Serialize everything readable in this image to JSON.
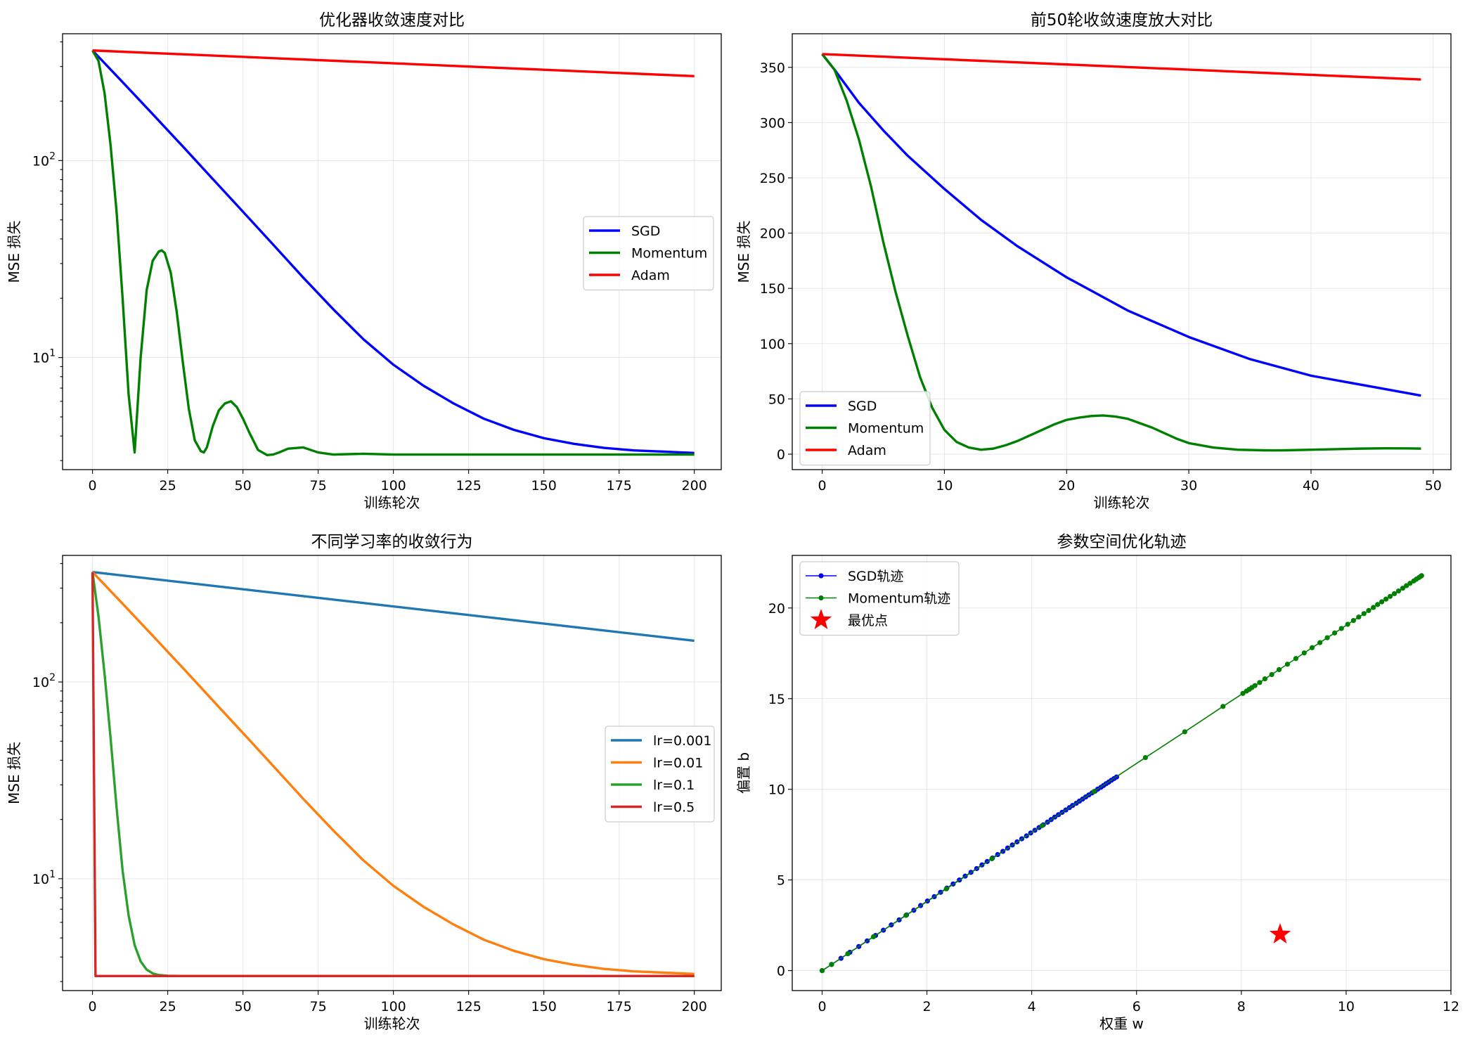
{
  "chart_data": [
    {
      "id": "p1",
      "type": "line",
      "title": "优化器收敛速度对比",
      "xlabel": "训练轮次",
      "ylabel": "MSE 损失",
      "xlim": [
        -9.95,
        208.95
      ],
      "ylim": [
        2.7,
        440
      ],
      "yscale": "log",
      "grid": true,
      "legend_position": "center-right",
      "xticks": [
        0,
        25,
        50,
        75,
        100,
        125,
        150,
        175,
        200
      ],
      "yticks_major": [
        {
          "value": 10,
          "base": "10",
          "exp": "1"
        },
        {
          "value": 100,
          "base": "10",
          "exp": "2"
        }
      ],
      "series": [
        {
          "name": "SGD",
          "color": "#0000ff",
          "x": [
            0,
            10,
            20,
            30,
            40,
            50,
            60,
            70,
            80,
            90,
            100,
            110,
            120,
            130,
            140,
            150,
            160,
            170,
            180,
            190,
            200
          ],
          "y": [
            362,
            250,
            172,
            118,
            80.5,
            55,
            37.5,
            25.5,
            17.6,
            12.4,
            9.2,
            7.2,
            5.85,
            4.9,
            4.3,
            3.9,
            3.65,
            3.48,
            3.38,
            3.33,
            3.28
          ]
        },
        {
          "name": "Momentum",
          "color": "#008000",
          "x": [
            0,
            2,
            4,
            6,
            8,
            10,
            12,
            14,
            16,
            18,
            20,
            22,
            23,
            24,
            26,
            28,
            30,
            32,
            34,
            36,
            37,
            38,
            40,
            42,
            44,
            46,
            48,
            50,
            52,
            55,
            58,
            60,
            62,
            65,
            70,
            75,
            80,
            90,
            100,
            200
          ],
          "y": [
            362,
            320,
            220,
            120,
            55,
            20,
            6.5,
            3.3,
            10,
            22,
            31,
            34.5,
            35,
            34,
            27,
            17,
            9.5,
            5.5,
            3.8,
            3.35,
            3.3,
            3.5,
            4.5,
            5.4,
            5.85,
            6.0,
            5.6,
            4.9,
            4.2,
            3.4,
            3.2,
            3.22,
            3.3,
            3.45,
            3.5,
            3.3,
            3.22,
            3.25,
            3.22,
            3.22
          ]
        },
        {
          "name": "Adam",
          "color": "#ff0000",
          "x": [
            0,
            200
          ],
          "y": [
            362,
            268
          ]
        }
      ]
    },
    {
      "id": "p2",
      "type": "line",
      "title": "前50轮收敛速度放大对比",
      "xlabel": "训练轮次",
      "ylabel": "MSE 损失",
      "xlim": [
        -2.45,
        51.45
      ],
      "ylim": [
        -14,
        380.4
      ],
      "yscale": "linear",
      "grid": true,
      "legend_position": "lower-left",
      "xticks": [
        0,
        10,
        20,
        30,
        40,
        50
      ],
      "yticks": [
        0,
        50,
        100,
        150,
        200,
        250,
        300,
        350
      ],
      "series": [
        {
          "name": "SGD",
          "color": "#0000ff",
          "x": [
            0,
            1,
            2,
            3,
            5,
            7,
            10,
            13,
            16,
            20,
            25,
            30,
            35,
            40,
            45,
            49
          ],
          "y": [
            362,
            348,
            333,
            318,
            293,
            270,
            240,
            212,
            188,
            160,
            130,
            106,
            86,
            71,
            61,
            53
          ]
        },
        {
          "name": "Momentum",
          "color": "#008000",
          "x": [
            0,
            1,
            2,
            3,
            4,
            5,
            6,
            7,
            8,
            9,
            10,
            11,
            12,
            13,
            14,
            15,
            16,
            17,
            18,
            19,
            20,
            21,
            22,
            23,
            24,
            25,
            26,
            27,
            28,
            29,
            30,
            32,
            34,
            36,
            37,
            38,
            40,
            42,
            44,
            46,
            48,
            49
          ],
          "y": [
            362,
            348,
            320,
            285,
            242,
            192,
            147,
            107,
            70,
            42,
            22,
            11,
            6,
            4,
            5,
            8,
            12,
            17,
            22,
            27,
            31,
            33,
            34.5,
            35,
            34,
            32,
            28,
            24,
            19,
            14,
            10,
            6,
            4,
            3.5,
            3.4,
            3.5,
            4,
            4.5,
            5,
            5.3,
            5.2,
            5
          ]
        },
        {
          "name": "Adam",
          "color": "#ff0000",
          "x": [
            0,
            49
          ],
          "y": [
            362,
            339
          ]
        }
      ]
    },
    {
      "id": "p3",
      "type": "line",
      "title": "不同学习率的收敛行为",
      "xlabel": "训练轮次",
      "ylabel": "MSE 损失",
      "xlim": [
        -9.95,
        208.95
      ],
      "ylim": [
        2.7,
        440
      ],
      "yscale": "log",
      "grid": true,
      "legend_position": "center-right",
      "xticks": [
        0,
        25,
        50,
        75,
        100,
        125,
        150,
        175,
        200
      ],
      "yticks_major": [
        {
          "value": 10,
          "base": "10",
          "exp": "1"
        },
        {
          "value": 100,
          "base": "10",
          "exp": "2"
        }
      ],
      "series": [
        {
          "name": "lr=0.001",
          "color": "#1f77b4",
          "x": [
            0,
            200
          ],
          "y": [
            362,
            162
          ]
        },
        {
          "name": "lr=0.01",
          "color": "#ff7f0e",
          "x": [
            0,
            10,
            20,
            30,
            40,
            50,
            60,
            70,
            80,
            90,
            100,
            110,
            120,
            130,
            140,
            150,
            160,
            170,
            180,
            190,
            200
          ],
          "y": [
            362,
            250,
            172,
            118,
            80.5,
            55,
            37.5,
            25.5,
            17.6,
            12.4,
            9.2,
            7.2,
            5.85,
            4.9,
            4.3,
            3.9,
            3.65,
            3.48,
            3.38,
            3.33,
            3.28
          ]
        },
        {
          "name": "lr=0.1",
          "color": "#2ca02c",
          "x": [
            0,
            2,
            4,
            6,
            8,
            10,
            12,
            14,
            16,
            18,
            20,
            22,
            25,
            30,
            200
          ],
          "y": [
            362,
            215,
            110,
            52,
            23,
            11,
            6.5,
            4.6,
            3.8,
            3.45,
            3.3,
            3.24,
            3.21,
            3.2,
            3.2
          ]
        },
        {
          "name": "lr=0.5",
          "color": "#d62728",
          "x": [
            0,
            1,
            2,
            200
          ],
          "y": [
            362,
            3.2,
            3.2,
            3.2
          ]
        }
      ]
    },
    {
      "id": "p4",
      "type": "line",
      "title": "参数空间优化轨迹",
      "xlabel": "权重 w",
      "ylabel": "偏置 b",
      "xlim": [
        -0.57,
        12.0
      ],
      "ylim": [
        -1.1,
        22.9
      ],
      "yscale": "linear",
      "grid": true,
      "legend_position": "upper-left",
      "xticks": [
        0,
        2,
        4,
        6,
        8,
        10,
        12
      ],
      "yticks": [
        0,
        5,
        10,
        15,
        20
      ],
      "series": [
        {
          "name": "SGD轨迹",
          "color": "#0000ff",
          "marker": "dot",
          "x": [
            0,
            0.18,
            0.36,
            0.53,
            0.7,
            0.86,
            1.02,
            1.17,
            1.32,
            1.47,
            1.61,
            1.75,
            1.88,
            2.01,
            2.14,
            2.26,
            2.38,
            2.5,
            2.62,
            2.73,
            2.84,
            2.95,
            3.05,
            3.15,
            3.25,
            3.35,
            3.45,
            3.54,
            3.63,
            3.72,
            3.81,
            3.9,
            3.98,
            4.06,
            4.14,
            4.22,
            4.3,
            4.37,
            4.44,
            4.51,
            4.58,
            4.65,
            4.72,
            4.78,
            4.85,
            4.91,
            4.97,
            5.03,
            5.09,
            5.15,
            5.21,
            5.26,
            5.32,
            5.37,
            5.42,
            5.47,
            5.52,
            5.57,
            5.62
          ],
          "y": [
            0,
            0.34,
            0.68,
            1.01,
            1.33,
            1.64,
            1.94,
            2.23,
            2.52,
            2.8,
            3.07,
            3.33,
            3.59,
            3.84,
            4.08,
            4.32,
            4.55,
            4.78,
            5.0,
            5.21,
            5.42,
            5.63,
            5.83,
            6.02,
            6.21,
            6.4,
            6.58,
            6.76,
            6.93,
            7.1,
            7.27,
            7.43,
            7.59,
            7.74,
            7.89,
            8.04,
            8.19,
            8.33,
            8.47,
            8.6,
            8.73,
            8.86,
            8.99,
            9.11,
            9.23,
            9.35,
            9.46,
            9.58,
            9.69,
            9.8,
            9.9,
            10.01,
            10.11,
            10.21,
            10.31,
            10.4,
            10.5,
            10.59,
            10.68
          ]
        },
        {
          "name": "Momentum轨迹",
          "color": "#008000",
          "marker": "dot",
          "x": [
            0,
            0.18,
            0.49,
            0.98,
            1.6,
            2.37,
            3.24,
            4.2,
            5.19,
            6.17,
            6.92,
            7.65,
            8.03,
            8.1,
            8.15,
            8.2,
            8.26,
            8.35,
            8.45,
            8.58,
            8.72,
            8.88,
            9.04,
            9.2,
            9.35,
            9.5,
            9.64,
            9.78,
            9.91,
            10.03,
            10.14,
            10.24,
            10.34,
            10.43,
            10.52,
            10.6,
            10.68,
            10.76,
            10.84,
            10.92,
            11.0,
            11.08,
            11.15,
            11.22,
            11.29,
            11.34,
            11.39,
            11.42,
            11.44
          ],
          "y": [
            0,
            0.34,
            0.93,
            1.87,
            3.05,
            4.51,
            6.17,
            8.0,
            9.88,
            11.75,
            13.17,
            14.57,
            15.29,
            15.42,
            15.51,
            15.61,
            15.72,
            15.89,
            16.09,
            16.33,
            16.6,
            16.9,
            17.21,
            17.52,
            17.81,
            18.09,
            18.36,
            18.62,
            18.87,
            19.1,
            19.31,
            19.5,
            19.69,
            19.86,
            20.03,
            20.19,
            20.34,
            20.49,
            20.64,
            20.79,
            20.94,
            21.09,
            21.23,
            21.36,
            21.49,
            21.59,
            21.68,
            21.74,
            21.78
          ]
        },
        {
          "name": "最优点",
          "color": "#ff0000",
          "marker": "star",
          "x": [
            8.74
          ],
          "y": [
            2.0
          ]
        }
      ]
    }
  ]
}
